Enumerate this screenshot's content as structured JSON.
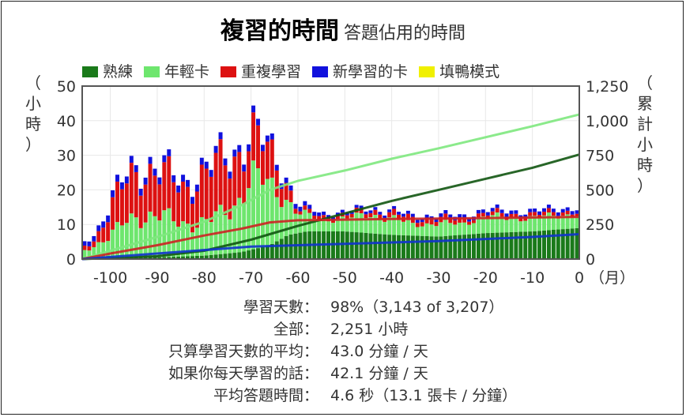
{
  "title": "複習的時間",
  "subtitle": "答題佔用的時間",
  "legend": [
    {
      "label": "熟練",
      "color": "#1a7a1a"
    },
    {
      "label": "年輕卡",
      "color": "#6ee66e"
    },
    {
      "label": "重複學習",
      "color": "#dd1111"
    },
    {
      "label": "新學習的卡",
      "color": "#1111dd"
    },
    {
      "label": "填鴨模式",
      "color": "#f0f000"
    }
  ],
  "chart_data": {
    "type": "bar",
    "stacked": true,
    "x_unit_label": "（月）",
    "y_left_label": "（小時）",
    "y_right_label": "（累計小時）",
    "xlim": [
      -106,
      0
    ],
    "ylim_left": [
      0,
      50
    ],
    "ylim_right": [
      0,
      1250
    ],
    "x_ticks": [
      "-100",
      "-90",
      "-80",
      "-70",
      "-60",
      "-50",
      "-40",
      "-30",
      "-20",
      "-10",
      "0"
    ],
    "y_left_ticks": [
      "0",
      "10",
      "20",
      "30",
      "40",
      "50"
    ],
    "y_right_ticks": [
      "0",
      "250",
      "500",
      "750",
      "1,000",
      "1,250"
    ],
    "grid": true,
    "legend_position": "top",
    "bar_series": [
      {
        "name": "熟練",
        "color": "#1a7a1a",
        "keyframes": [
          [
            -106,
            0
          ],
          [
            -100,
            0.2
          ],
          [
            -90,
            0.5
          ],
          [
            -80,
            1
          ],
          [
            -72,
            2
          ],
          [
            -66,
            4
          ],
          [
            -62,
            7
          ],
          [
            -58,
            8
          ],
          [
            -50,
            8
          ],
          [
            -40,
            7
          ],
          [
            -30,
            6.5
          ],
          [
            -20,
            7.5
          ],
          [
            -10,
            8
          ],
          [
            0,
            9
          ]
        ]
      },
      {
        "name": "年輕卡",
        "color": "#6ee66e",
        "keyframes": [
          [
            -106,
            2
          ],
          [
            -103,
            4
          ],
          [
            -100,
            7
          ],
          [
            -97,
            10
          ],
          [
            -90,
            13
          ],
          [
            -85,
            9
          ],
          [
            -80,
            10
          ],
          [
            -74,
            12
          ],
          [
            -70,
            22
          ],
          [
            -68,
            20
          ],
          [
            -64,
            13
          ],
          [
            -62,
            10
          ],
          [
            -60,
            6
          ],
          [
            -55,
            3
          ],
          [
            -50,
            4
          ],
          [
            -45,
            5
          ],
          [
            -40,
            5
          ],
          [
            -35,
            3
          ],
          [
            -30,
            4
          ],
          [
            -25,
            3
          ],
          [
            -20,
            5
          ],
          [
            -15,
            4
          ],
          [
            -10,
            4
          ],
          [
            -5,
            4
          ],
          [
            0,
            4
          ]
        ]
      },
      {
        "name": "重複學習",
        "color": "#dd1111",
        "keyframes": [
          [
            -106,
            1
          ],
          [
            -103,
            2
          ],
          [
            -100,
            8
          ],
          [
            -96,
            12
          ],
          [
            -92,
            13
          ],
          [
            -88,
            12
          ],
          [
            -84,
            10
          ],
          [
            -80,
            14
          ],
          [
            -76,
            15
          ],
          [
            -72,
            13
          ],
          [
            -70,
            12
          ],
          [
            -67,
            10
          ],
          [
            -64,
            8
          ],
          [
            -62,
            4
          ],
          [
            -60,
            1
          ],
          [
            -50,
            1
          ],
          [
            -40,
            1.5
          ],
          [
            -30,
            1.5
          ],
          [
            -20,
            1
          ],
          [
            -10,
            1
          ],
          [
            0,
            1
          ]
        ]
      },
      {
        "name": "新學習的卡",
        "color": "#1111dd",
        "keyframes": [
          [
            -106,
            1.2
          ],
          [
            -100,
            2
          ],
          [
            -90,
            2
          ],
          [
            -80,
            2
          ],
          [
            -70,
            2
          ],
          [
            -62,
            1.5
          ],
          [
            -55,
            1
          ],
          [
            -50,
            0.8
          ],
          [
            -40,
            0.8
          ],
          [
            -30,
            1
          ],
          [
            -20,
            1
          ],
          [
            -10,
            1
          ],
          [
            0,
            1
          ]
        ]
      },
      {
        "name": "填鴨模式",
        "color": "#f0f000",
        "keyframes": [
          [
            -106,
            0
          ],
          [
            0,
            0
          ]
        ]
      }
    ],
    "cumulative_series": [
      {
        "name": "年輕卡",
        "color": "#7ee87e",
        "points": [
          [
            -106,
            0
          ],
          [
            -100,
            60
          ],
          [
            -90,
            160
          ],
          [
            -80,
            270
          ],
          [
            -72,
            390
          ],
          [
            -66,
            500
          ],
          [
            -60,
            565
          ],
          [
            -50,
            640
          ],
          [
            -40,
            725
          ],
          [
            -30,
            800
          ],
          [
            -20,
            880
          ],
          [
            -10,
            960
          ],
          [
            0,
            1045
          ]
        ]
      },
      {
        "name": "熟練",
        "color": "#115511",
        "points": [
          [
            -106,
            0
          ],
          [
            -90,
            20
          ],
          [
            -80,
            60
          ],
          [
            -70,
            140
          ],
          [
            -60,
            240
          ],
          [
            -50,
            330
          ],
          [
            -40,
            420
          ],
          [
            -30,
            500
          ],
          [
            -20,
            580
          ],
          [
            -10,
            660
          ],
          [
            0,
            755
          ]
        ]
      },
      {
        "name": "重複學習",
        "color": "#cc2222",
        "points": [
          [
            -106,
            0
          ],
          [
            -100,
            40
          ],
          [
            -90,
            100
          ],
          [
            -80,
            170
          ],
          [
            -72,
            220
          ],
          [
            -66,
            265
          ],
          [
            -60,
            280
          ],
          [
            -50,
            285
          ],
          [
            -40,
            290
          ],
          [
            -30,
            293
          ],
          [
            -20,
            296
          ],
          [
            -10,
            300
          ],
          [
            0,
            305
          ]
        ]
      },
      {
        "name": "新學習的卡",
        "color": "#1133cc",
        "points": [
          [
            -106,
            0
          ],
          [
            -90,
            40
          ],
          [
            -80,
            65
          ],
          [
            -70,
            90
          ],
          [
            -60,
            100
          ],
          [
            -50,
            110
          ],
          [
            -40,
            120
          ],
          [
            -30,
            130
          ],
          [
            -20,
            145
          ],
          [
            -10,
            160
          ],
          [
            0,
            180
          ]
        ]
      }
    ]
  },
  "stats": [
    {
      "label": "學習天數：",
      "value": "98%（3,143 of 3,207）"
    },
    {
      "label": "全部：",
      "value": "2,251 小時"
    },
    {
      "label": "只算學習天數的平均：",
      "value": "43.0 分鐘 / 天"
    },
    {
      "label": "如果你每天學習的話：",
      "value": "42.1 分鐘 / 天"
    },
    {
      "label": "平均答題時間：",
      "value": "4.6 秒（13.1 張卡 / 分鐘）"
    }
  ]
}
